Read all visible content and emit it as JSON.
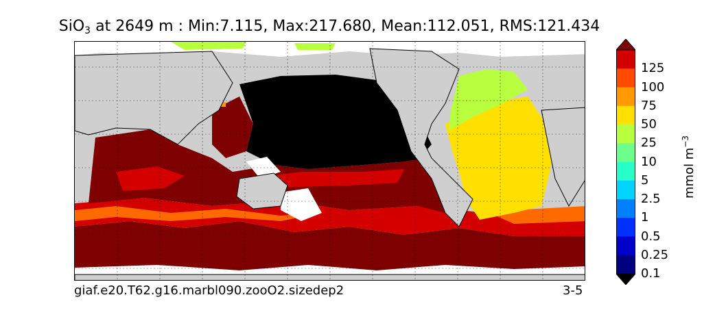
{
  "title": {
    "species_base": "SiO",
    "species_sub": "3",
    "rest": " at 2649 m : Min:7.115, Max:217.680, Mean:112.051, RMS:121.434"
  },
  "footer": {
    "run_name": "giaf.e20.T62.g16.marbl090.zooO2.sizedep2",
    "panel_id": "3-5"
  },
  "colorbar": {
    "unit_base": "mmol m",
    "unit_exp": "−3",
    "labels": [
      "125",
      "100",
      "75",
      "50",
      "25",
      "10",
      "5",
      "2.5",
      "1",
      "0.5",
      "0.25",
      "0.1"
    ],
    "colors": [
      "#7f0000",
      "#d40000",
      "#ff4a00",
      "#ff9a00",
      "#ffe000",
      "#b8ff40",
      "#6cff8c",
      "#28ffc8",
      "#00d4ff",
      "#0080ff",
      "#0030ff",
      "#0000c8",
      "#000080",
      "#000000"
    ]
  },
  "map_colors": {
    "land": "#cfcfcf",
    "missing": "#ffffff",
    "pacific_high": "#000000",
    "southern": "#7f0000",
    "band_red": "#d40000",
    "band_orange": "#ff6a00",
    "atlantic": "#ffe000",
    "north_atlantic": "#b8ff40"
  }
}
